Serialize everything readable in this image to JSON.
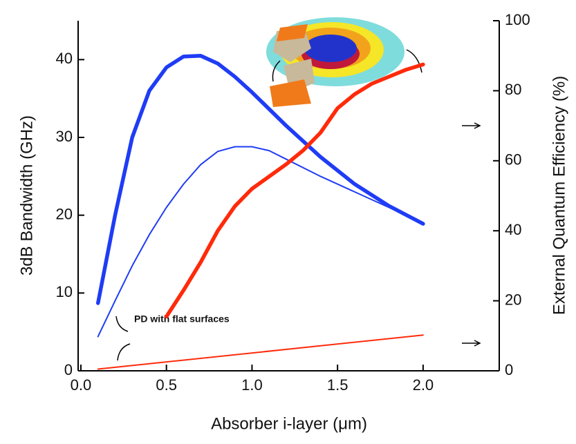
{
  "chart_data": {
    "type": "line",
    "x_label": "Absorber i-layer (μm)",
    "y_label": "3dB Bandwidth (GHz)",
    "y2_label": "External Quantum Efficiency (%)",
    "annotations": [
      "PD with flat surfaces"
    ],
    "xlim": [
      -0.016,
      2.445
    ],
    "xticks": [
      {
        "value": 0,
        "label": "0.0"
      },
      0.5,
      {
        "value": 1,
        "label": "1.0"
      },
      1.5,
      {
        "value": 2,
        "label": "2.0"
      }
    ],
    "ylim": [
      0,
      45
    ],
    "yticks": [
      0,
      10,
      20,
      30,
      40
    ],
    "y2lim": [
      0,
      100
    ],
    "y2ticks": [
      0,
      20,
      40,
      60,
      80,
      100
    ],
    "series": [
      {
        "color": "#1f3cf5",
        "line_width": 5.5,
        "x": [
          0.1,
          0.2,
          0.3,
          0.4,
          0.5,
          0.6,
          0.7,
          0.8,
          0.9,
          1.0,
          1.2,
          1.4,
          1.6,
          1.8,
          2.0
        ],
        "values": [
          8.7,
          20,
          30,
          36,
          39,
          40.4,
          40.5,
          39.5,
          37.8,
          35.8,
          31.5,
          27.5,
          24,
          21.2,
          18.9
        ]
      },
      {
        "color": "#1f3cf5",
        "line_width": 2,
        "x": [
          0.1,
          0.2,
          0.3,
          0.4,
          0.5,
          0.6,
          0.7,
          0.8,
          0.9,
          1.0,
          1.1,
          1.2,
          1.4,
          1.6,
          1.8,
          2.0
        ],
        "values": [
          4.4,
          9,
          13.5,
          17.5,
          21,
          24,
          26.5,
          28.2,
          28.8,
          28.8,
          28.3,
          27.2,
          25,
          23,
          21,
          19
        ]
      },
      {
        "color": "#ff2a0a",
        "line_width": 5.5,
        "axis": "y2",
        "x": [
          0.5,
          0.6,
          0.7,
          0.8,
          0.9,
          1.0,
          1.1,
          1.2,
          1.3,
          1.4,
          1.5,
          1.6,
          1.7,
          1.8,
          1.9,
          2.0
        ],
        "values": [
          15.5,
          23,
          31,
          40,
          47,
          52,
          55.5,
          59,
          63,
          68,
          75,
          79,
          82,
          84,
          86,
          87.5
        ]
      },
      {
        "color": "#ff2a0a",
        "line_width": 2,
        "axis": "y2",
        "x": [
          0.1,
          2.0
        ],
        "values": [
          0.5,
          10.2
        ]
      }
    ]
  }
}
